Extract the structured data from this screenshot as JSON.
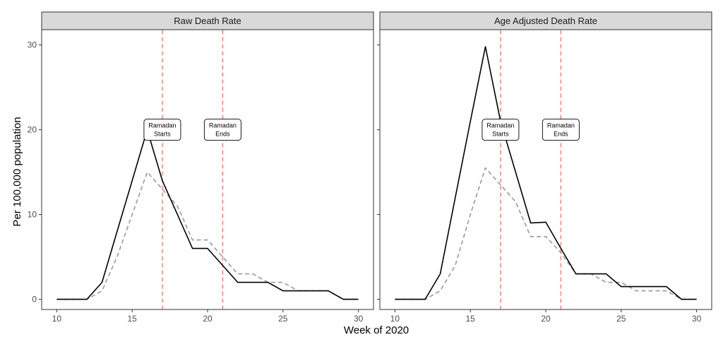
{
  "chart_data": {
    "type": "line",
    "xlabel": "Week of 2020",
    "ylabel": "Per 100,000 population",
    "xlim": [
      9,
      31
    ],
    "ylim": [
      -1.2,
      31.8
    ],
    "x_ticks": [
      10,
      15,
      20,
      25,
      30
    ],
    "y_ticks": [
      0,
      10,
      20,
      30
    ],
    "grid": false,
    "colors": {
      "solid_series": "#000000",
      "dashed_series": "#999999",
      "vline": "#f8766d",
      "strip_bg": "#d9d9d9",
      "panel_border": "#333333"
    },
    "vlines": [
      {
        "x": 17,
        "label_lines": [
          "Ramadan",
          "Starts"
        ]
      },
      {
        "x": 21,
        "label_lines": [
          "Ramadan",
          "Ends"
        ]
      }
    ],
    "annotation_y": 20,
    "panels": [
      {
        "title": "Raw Death Rate",
        "series": [
          {
            "style": "solid",
            "x": [
              10,
              11,
              12,
              13,
              14,
              15,
              16,
              17,
              18,
              19,
              20,
              21,
              22,
              23,
              24,
              25,
              26,
              27,
              28,
              29,
              30
            ],
            "y": [
              0,
              0,
              0,
              2,
              8,
              14,
              20,
              14,
              10,
              6,
              6,
              4,
              2,
              2,
              2,
              1,
              1,
              1,
              1,
              0,
              0
            ]
          },
          {
            "style": "dashed",
            "x": [
              10,
              11,
              12,
              13,
              14,
              15,
              16,
              17,
              18,
              19,
              20,
              21,
              22,
              23,
              24,
              25,
              26,
              27,
              28,
              29,
              30
            ],
            "y": [
              0,
              0,
              0,
              1,
              5,
              10,
              15,
              13,
              11,
              7,
              7,
              5,
              3,
              3,
              2,
              2,
              1,
              1,
              1,
              0,
              0
            ]
          }
        ]
      },
      {
        "title": "Age Adjusted Death Rate",
        "series": [
          {
            "style": "solid",
            "x": [
              10,
              11,
              12,
              13,
              14,
              15,
              16,
              17,
              18,
              19,
              20,
              21,
              22,
              23,
              24,
              25,
              26,
              27,
              28,
              29,
              30
            ],
            "y": [
              0,
              0,
              0,
              3,
              12,
              21,
              29.8,
              21,
              15,
              9,
              9.1,
              6,
              3,
              3,
              3,
              1.5,
              1.5,
              1.5,
              1.5,
              0,
              0
            ]
          },
          {
            "style": "dashed",
            "x": [
              10,
              11,
              12,
              13,
              14,
              15,
              16,
              17,
              18,
              19,
              20,
              21,
              22,
              23,
              24,
              25,
              26,
              27,
              28,
              29,
              30
            ],
            "y": [
              0,
              0,
              0,
              1,
              4,
              10,
              15.5,
              13.5,
              11.5,
              7.4,
              7.4,
              5.5,
              3,
              3,
              2,
              2,
              1,
              1,
              1,
              0,
              0
            ]
          }
        ]
      }
    ]
  }
}
